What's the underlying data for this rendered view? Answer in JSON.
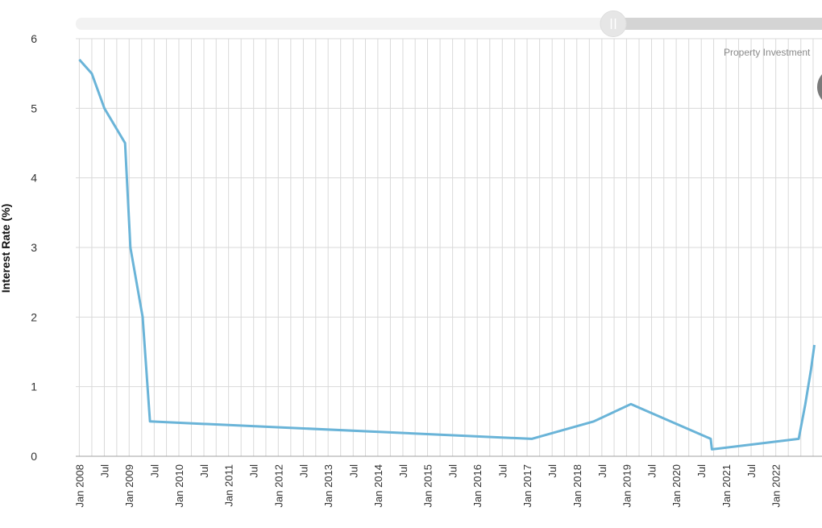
{
  "chart_data": {
    "type": "line",
    "ylabel": "Interest Rate (%)",
    "ylim": [
      0,
      6
    ],
    "y_ticks": [
      0,
      1,
      2,
      3,
      4,
      5,
      6
    ],
    "x_tick_labels": [
      "Jan 2008",
      "Jul",
      "Jan 2009",
      "Jul",
      "Jan 2010",
      "Jul",
      "Jan 2011",
      "Jul",
      "Jan 2012",
      "Jul",
      "Jan 2013",
      "Jul",
      "Jan 2014",
      "Jul",
      "Jan 2015",
      "Jul",
      "Jan 2016",
      "Jul",
      "Jan 2017",
      "Jul",
      "Jan 2018",
      "Jul",
      "Jan 2019",
      "Jul",
      "Jan 2020",
      "Jul",
      "Jan 2021",
      "Jul",
      "Jan 2022"
    ],
    "grid": true,
    "series": [
      {
        "color": "#6ab4d8",
        "x": [
          "2007-07-01",
          "2007-10-01",
          "2008-01-01",
          "2008-06-01",
          "2008-07-10",
          "2008-10-08",
          "2008-12-01",
          "2016-08-04",
          "2017-11-02",
          "2018-08-02",
          "2020-03-10",
          "2020-03-19",
          "2021-12-16",
          "2022-02-03",
          "2022-03-17",
          "2022-04-10"
        ],
        "y": [
          5.7,
          5.5,
          5.0,
          4.5,
          3.0,
          2.0,
          0.5,
          0.25,
          0.5,
          0.75,
          0.25,
          0.1,
          0.25,
          0.75,
          1.25,
          1.6
        ]
      }
    ]
  },
  "range_slider": {
    "color": "#d4d4d4",
    "track_color": "#f2f2f2",
    "handle_color": "#e6e6e6"
  },
  "annotation": {
    "text": "Property Investment"
  }
}
